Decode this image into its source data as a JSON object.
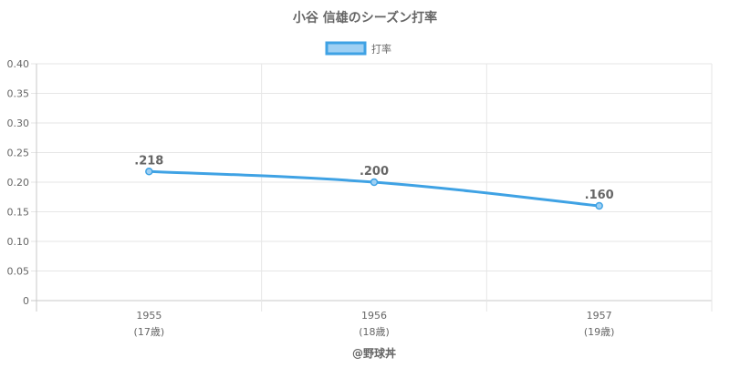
{
  "chart_data": {
    "type": "line",
    "title": "小谷 信雄のシーズン打率",
    "legend": {
      "position": "top",
      "label": "打率"
    },
    "categories": [
      "1955",
      "1956",
      "1957"
    ],
    "category_sublabels": [
      "(17歳)",
      "(18歳)",
      "(19歳)"
    ],
    "series": [
      {
        "name": "打率",
        "values": [
          0.218,
          0.2,
          0.16
        ],
        "data_labels": [
          ".218",
          ".200",
          ".160"
        ],
        "color": "#3fa2e4",
        "fill": "#9fd0f3"
      }
    ],
    "ylim": [
      0,
      0.4
    ],
    "y_ticks": [
      "0",
      "0.05",
      "0.10",
      "0.15",
      "0.20",
      "0.25",
      "0.30",
      "0.35",
      "0.40"
    ],
    "y_tick_values": [
      0,
      0.05,
      0.1,
      0.15,
      0.2,
      0.25,
      0.3,
      0.35,
      0.4
    ],
    "grid": true,
    "credit": "@野球丼"
  }
}
